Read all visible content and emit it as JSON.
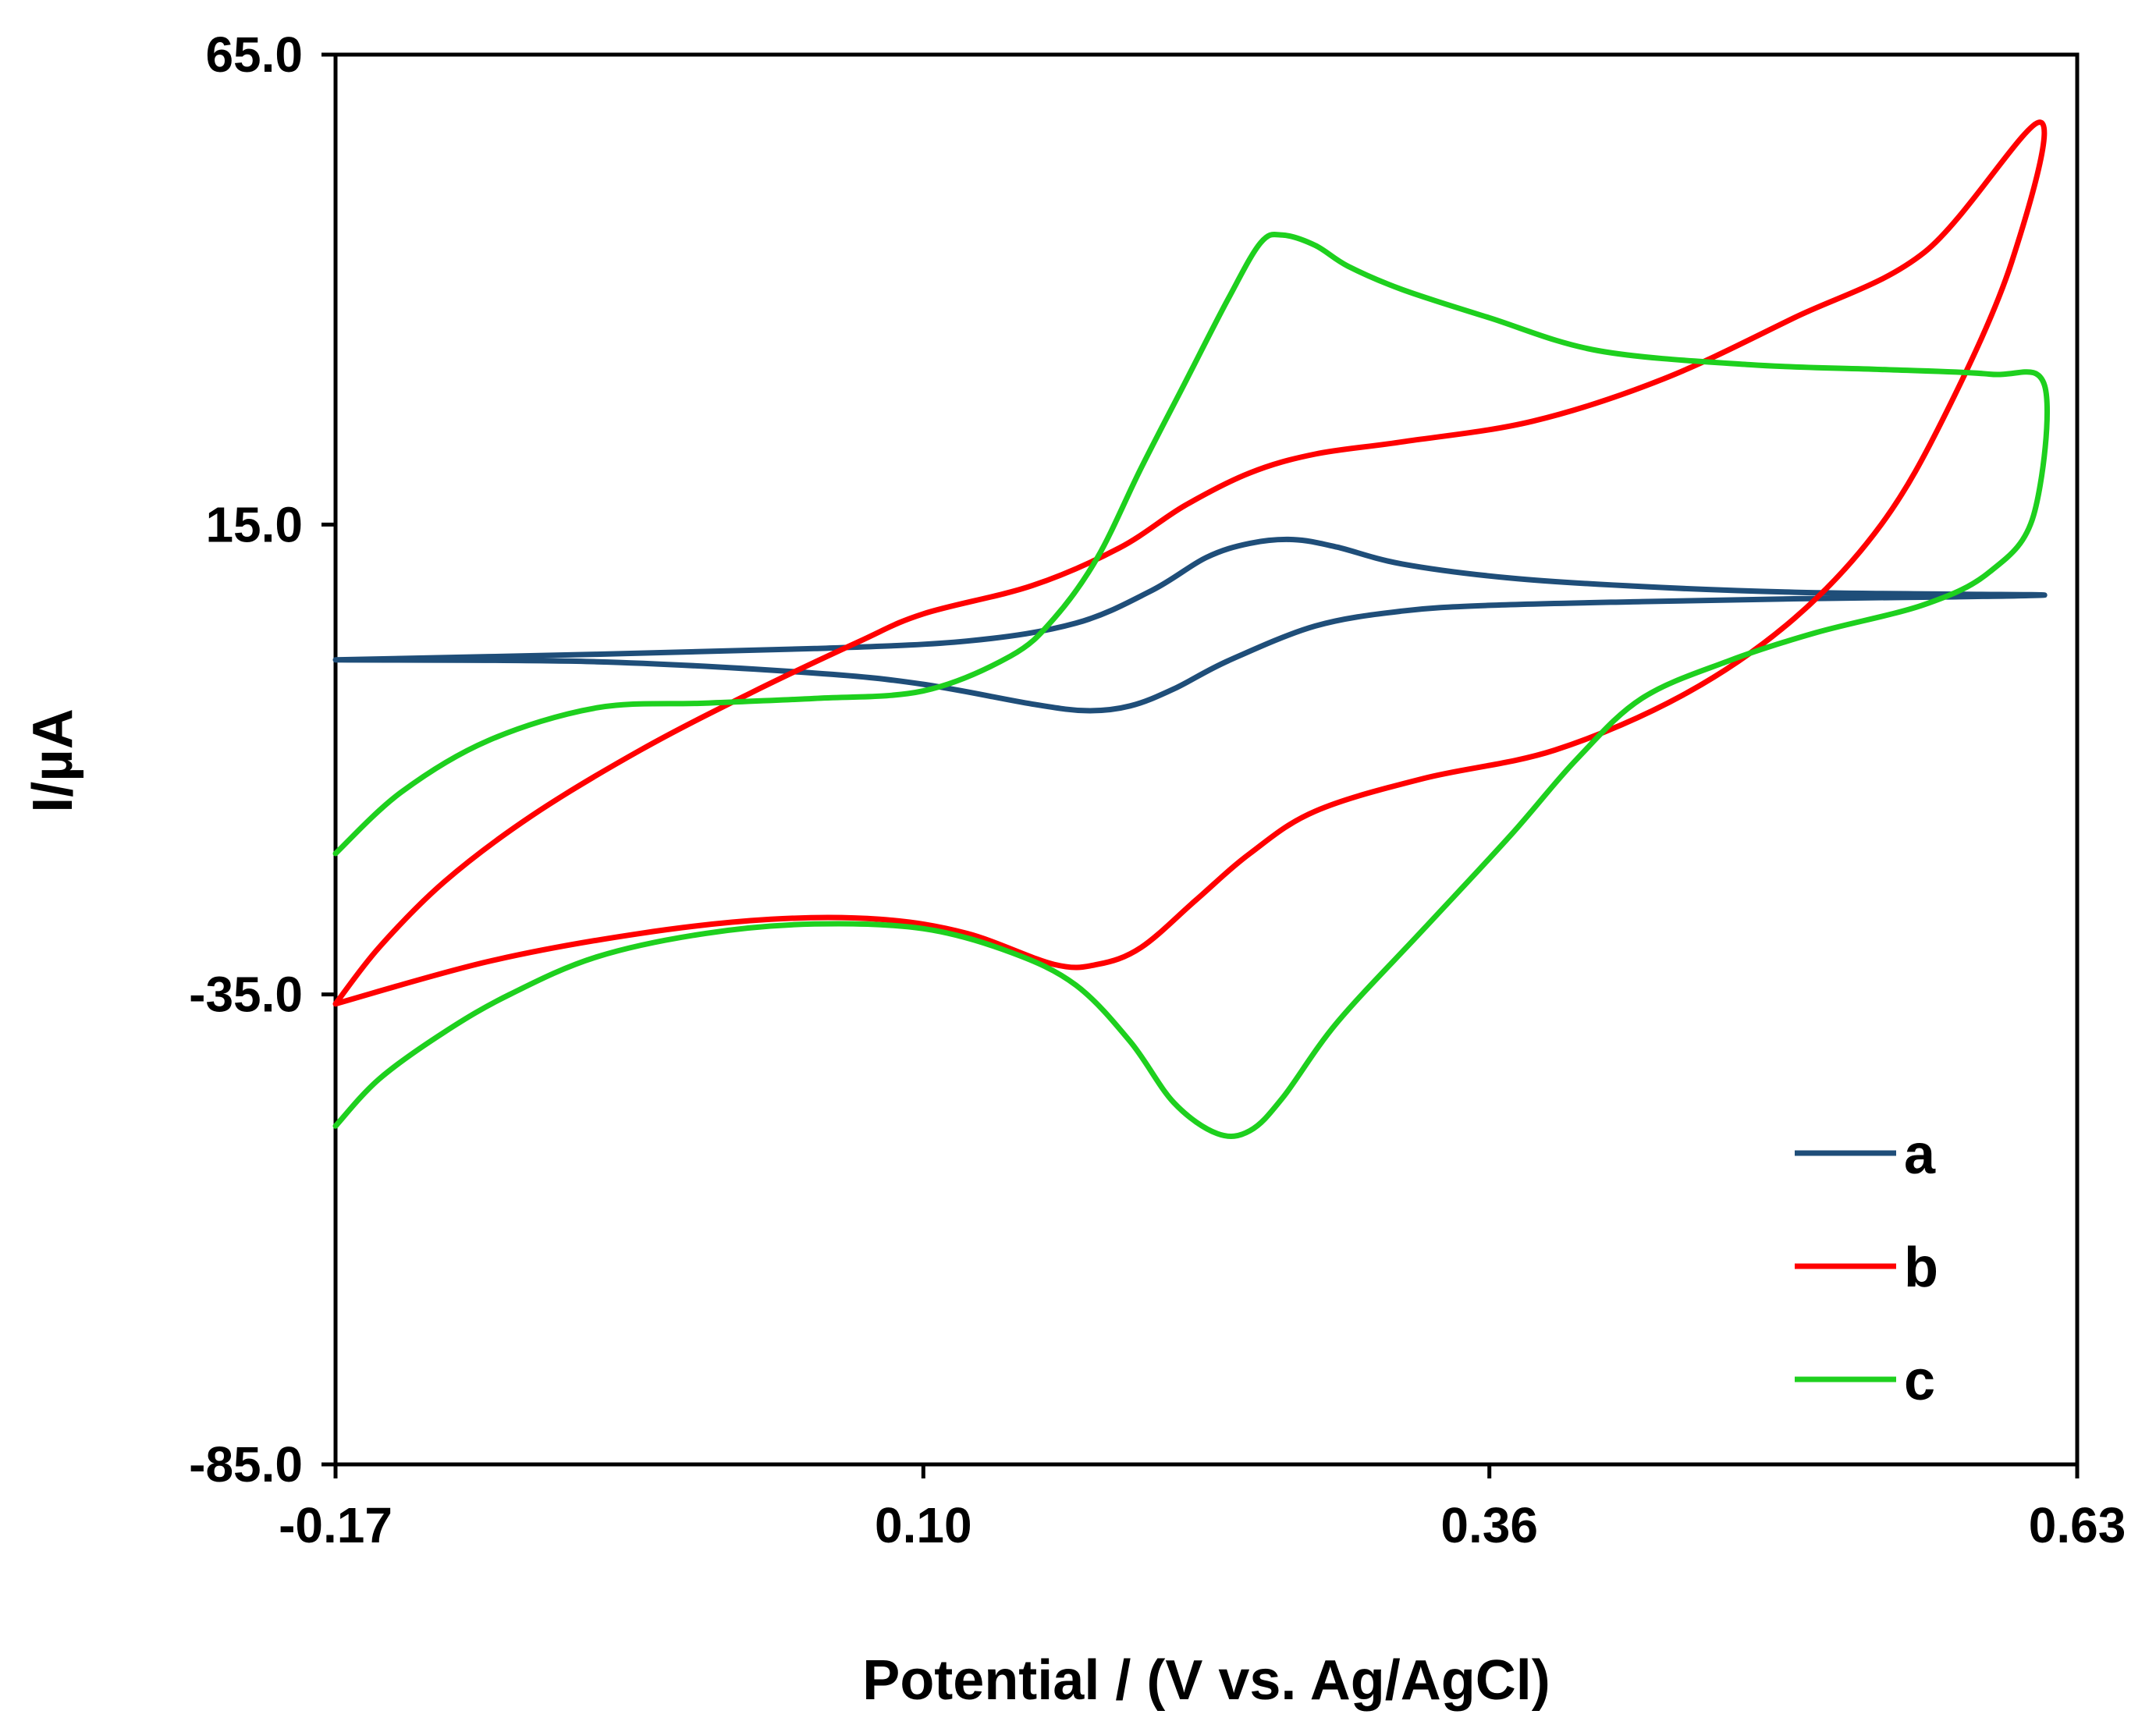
{
  "chart_data": {
    "type": "line",
    "title": "",
    "xlabel": "Potential / (V vs. Ag/AgCl)",
    "ylabel": "I/µA",
    "xlim": [
      -0.17,
      0.63
    ],
    "ylim": [
      -85.0,
      65.0
    ],
    "x_ticks": [
      "-0.17",
      "0.10",
      "0.36",
      "0.63"
    ],
    "y_ticks": [
      "65.0",
      "15.0",
      "-35.0",
      "-85.0"
    ],
    "grid": false,
    "legend_position": "bottom-right",
    "series": [
      {
        "name": "a",
        "color": "#1f4e79",
        "points": [
          [
            -0.17,
            0.6
          ],
          [
            -0.05,
            1.2
          ],
          [
            0.05,
            1.8
          ],
          [
            0.12,
            2.6
          ],
          [
            0.17,
            4.5
          ],
          [
            0.205,
            8.0
          ],
          [
            0.23,
            11.5
          ],
          [
            0.25,
            13.0
          ],
          [
            0.27,
            13.4
          ],
          [
            0.29,
            12.6
          ],
          [
            0.32,
            10.8
          ],
          [
            0.37,
            9.3
          ],
          [
            0.43,
            8.4
          ],
          [
            0.5,
            7.8
          ],
          [
            0.57,
            7.6
          ],
          [
            0.615,
            7.5
          ],
          [
            0.57,
            7.3
          ],
          [
            0.5,
            7.1
          ],
          [
            0.43,
            6.8
          ],
          [
            0.36,
            6.4
          ],
          [
            0.32,
            5.8
          ],
          [
            0.28,
            4.2
          ],
          [
            0.24,
            0.5
          ],
          [
            0.215,
            -2.5
          ],
          [
            0.195,
            -4.3
          ],
          [
            0.175,
            -4.8
          ],
          [
            0.15,
            -4.1
          ],
          [
            0.1,
            -2.0
          ],
          [
            0.05,
            -0.8
          ],
          [
            -0.05,
            0.4
          ],
          [
            -0.17,
            0.6
          ]
        ]
      },
      {
        "name": "b",
        "color": "#ff0000",
        "points": [
          [
            -0.17,
            -36.0
          ],
          [
            -0.15,
            -30.0
          ],
          [
            -0.12,
            -23.0
          ],
          [
            -0.08,
            -16.0
          ],
          [
            -0.03,
            -9.0
          ],
          [
            0.02,
            -3.0
          ],
          [
            0.07,
            2.5
          ],
          [
            0.1,
            5.5
          ],
          [
            0.15,
            8.5
          ],
          [
            0.19,
            12.5
          ],
          [
            0.22,
            17.0
          ],
          [
            0.25,
            20.5
          ],
          [
            0.28,
            22.5
          ],
          [
            0.32,
            23.8
          ],
          [
            0.38,
            26.0
          ],
          [
            0.44,
            30.5
          ],
          [
            0.5,
            37.0
          ],
          [
            0.56,
            44.0
          ],
          [
            0.613,
            57.8
          ],
          [
            0.6,
            43.0
          ],
          [
            0.57,
            27.0
          ],
          [
            0.54,
            15.0
          ],
          [
            0.5,
            5.0
          ],
          [
            0.45,
            -3.0
          ],
          [
            0.39,
            -9.0
          ],
          [
            0.33,
            -12.0
          ],
          [
            0.28,
            -15.5
          ],
          [
            0.25,
            -20.0
          ],
          [
            0.225,
            -25.0
          ],
          [
            0.2,
            -30.0
          ],
          [
            0.18,
            -31.8
          ],
          [
            0.16,
            -31.8
          ],
          [
            0.12,
            -28.5
          ],
          [
            0.08,
            -27.0
          ],
          [
            0.03,
            -27.0
          ],
          [
            -0.03,
            -28.5
          ],
          [
            -0.1,
            -31.5
          ],
          [
            -0.17,
            -36.0
          ]
        ]
      },
      {
        "name": "c",
        "color": "#1ed01e",
        "points": [
          [
            -0.17,
            -49.0
          ],
          [
            -0.15,
            -44.0
          ],
          [
            -0.12,
            -39.0
          ],
          [
            -0.09,
            -35.0
          ],
          [
            -0.05,
            -31.0
          ],
          [
            0.0,
            -28.5
          ],
          [
            0.05,
            -27.5
          ],
          [
            0.1,
            -28.0
          ],
          [
            0.14,
            -30.5
          ],
          [
            0.17,
            -34.0
          ],
          [
            0.195,
            -40.0
          ],
          [
            0.215,
            -46.5
          ],
          [
            0.235,
            -49.8
          ],
          [
            0.25,
            -49.5
          ],
          [
            0.265,
            -46.0
          ],
          [
            0.29,
            -38.0
          ],
          [
            0.33,
            -28.0
          ],
          [
            0.37,
            -18.0
          ],
          [
            0.4,
            -10.0
          ],
          [
            0.43,
            -3.5
          ],
          [
            0.47,
            0.5
          ],
          [
            0.51,
            3.5
          ],
          [
            0.56,
            6.5
          ],
          [
            0.59,
            10.0
          ],
          [
            0.61,
            16.0
          ],
          [
            0.615,
            29.8
          ],
          [
            0.59,
            31.0
          ],
          [
            0.54,
            31.5
          ],
          [
            0.48,
            32.0
          ],
          [
            0.41,
            33.5
          ],
          [
            0.36,
            37.0
          ],
          [
            0.32,
            40.0
          ],
          [
            0.295,
            42.5
          ],
          [
            0.28,
            44.7
          ],
          [
            0.265,
            45.8
          ],
          [
            0.255,
            45.0
          ],
          [
            0.24,
            39.0
          ],
          [
            0.22,
            30.0
          ],
          [
            0.2,
            21.0
          ],
          [
            0.18,
            11.5
          ],
          [
            0.16,
            5.0
          ],
          [
            0.14,
            1.0
          ],
          [
            0.1,
            -2.7
          ],
          [
            0.05,
            -3.5
          ],
          [
            0.0,
            -4.0
          ],
          [
            -0.05,
            -4.5
          ],
          [
            -0.1,
            -8.0
          ],
          [
            -0.14,
            -13.5
          ],
          [
            -0.17,
            -20.0
          ]
        ]
      }
    ]
  }
}
